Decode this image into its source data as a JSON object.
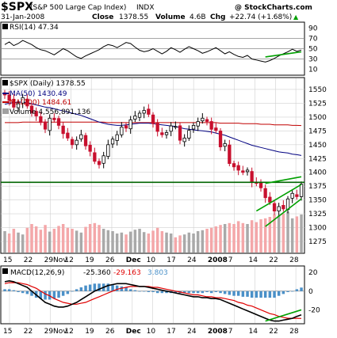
{
  "header": {
    "symbol": "$SPX",
    "name": "(S&P 500 Large Cap Index)",
    "exchange": "INDX",
    "watermark": "@ StockCharts.com",
    "date": "31-Jan-2008",
    "close_label": "Close",
    "close_value": "1378.55",
    "volume_label": "Volume",
    "volume_value": "4.6B",
    "chg_label": "Chg",
    "chg_value": "+22.74 (+1.68%)",
    "chg_arrow": "▲"
  },
  "chart_data": [
    {
      "type": "line",
      "panel": "rsi",
      "label": "RSI(14) 47.34",
      "ylim": [
        0,
        100
      ],
      "yticks": [
        10,
        30,
        50,
        70,
        90
      ],
      "reference_lines": [
        30,
        50,
        70
      ],
      "values": [
        58,
        63,
        56,
        60,
        66,
        62,
        58,
        52,
        48,
        46,
        42,
        38,
        44,
        50,
        46,
        40,
        34,
        31,
        36,
        40,
        44,
        48,
        54,
        58,
        56,
        52,
        57,
        62,
        60,
        53,
        47,
        44,
        46,
        50,
        45,
        40,
        45,
        52,
        48,
        43,
        49,
        54,
        50,
        46,
        41,
        44,
        48,
        52,
        46,
        40,
        44,
        39,
        35,
        33,
        37,
        30,
        28,
        26,
        24,
        27,
        31,
        36,
        40,
        44,
        49,
        45,
        47.34
      ],
      "trendline": [
        [
          58,
          34
        ],
        [
          66,
          44
        ]
      ],
      "trendline_color": "#00a000"
    },
    {
      "type": "candlestick",
      "panel": "price",
      "label": "$SPX (Daily) 1378.55",
      "legend": [
        {
          "name": "MA(50) 1430.49",
          "color": "#000080"
        },
        {
          "name": "MA(200) 1484.61",
          "color": "#c00000"
        },
        {
          "name": "Volume 4,556,891,136",
          "color": "#a0a0a0"
        }
      ],
      "ylim": [
        1255,
        1570
      ],
      "yticks": [
        1275,
        1300,
        1325,
        1350,
        1375,
        1400,
        1425,
        1450,
        1475,
        1500,
        1525,
        1550
      ],
      "x_labels": [
        "15",
        "22",
        "29Nov",
        "12",
        "19",
        "26",
        "Dec",
        "10",
        "17",
        "24",
        "2008",
        "7",
        "14",
        "22",
        "28"
      ],
      "close": [
        1540,
        1530,
        1518,
        1524,
        1535,
        1520,
        1508,
        1502,
        1490,
        1478,
        1498,
        1495,
        1485,
        1470,
        1462,
        1450,
        1458,
        1468,
        1448,
        1438,
        1420,
        1414,
        1430,
        1450,
        1460,
        1468,
        1482,
        1480,
        1495,
        1502,
        1507,
        1512,
        1505,
        1488,
        1474,
        1468,
        1472,
        1484,
        1483,
        1458,
        1462,
        1476,
        1485,
        1492,
        1498,
        1492,
        1478,
        1476,
        1446,
        1452,
        1416,
        1410,
        1404,
        1400,
        1404,
        1382,
        1380,
        1372,
        1354,
        1346,
        1330,
        1338,
        1334,
        1352,
        1362,
        1356,
        1378.55
      ],
      "ma50": [
        1523,
        1525,
        1526,
        1527,
        1527,
        1526,
        1524,
        1522,
        1520,
        1518,
        1517,
        1515,
        1513,
        1511,
        1509,
        1507,
        1505,
        1503,
        1500,
        1497,
        1494,
        1491,
        1489,
        1487,
        1486,
        1485,
        1485,
        1486,
        1487,
        1488,
        1489,
        1489,
        1489,
        1488,
        1487,
        1486,
        1485,
        1484,
        1483,
        1481,
        1479,
        1478,
        1477,
        1476,
        1475,
        1474,
        1473,
        1471,
        1469,
        1467,
        1464,
        1461,
        1458,
        1455,
        1452,
        1449,
        1447,
        1445,
        1443,
        1441,
        1439,
        1437,
        1436,
        1435,
        1433,
        1432,
        1430.49
      ],
      "ma200": [
        1490,
        1490,
        1490,
        1490,
        1491,
        1491,
        1491,
        1491,
        1491,
        1491,
        1491,
        1491,
        1491,
        1491,
        1491,
        1491,
        1491,
        1491,
        1491,
        1491,
        1491,
        1491,
        1491,
        1490,
        1490,
        1490,
        1490,
        1490,
        1490,
        1490,
        1490,
        1490,
        1490,
        1490,
        1490,
        1490,
        1490,
        1490,
        1490,
        1490,
        1490,
        1490,
        1490,
        1490,
        1490,
        1490,
        1490,
        1490,
        1489,
        1489,
        1489,
        1489,
        1489,
        1488,
        1488,
        1488,
        1488,
        1487,
        1487,
        1487,
        1486,
        1486,
        1486,
        1486,
        1485,
        1485,
        1484.61
      ],
      "volume_ratio": [
        0.45,
        0.4,
        0.5,
        0.42,
        0.38,
        0.52,
        0.6,
        0.55,
        0.48,
        0.58,
        0.44,
        0.5,
        0.56,
        0.6,
        0.52,
        0.5,
        0.46,
        0.42,
        0.54,
        0.6,
        0.62,
        0.58,
        0.5,
        0.47,
        0.45,
        0.4,
        0.42,
        0.38,
        0.44,
        0.48,
        0.5,
        0.43,
        0.4,
        0.46,
        0.52,
        0.45,
        0.42,
        0.4,
        0.32,
        0.36,
        0.38,
        0.42,
        0.4,
        0.45,
        0.47,
        0.5,
        0.52,
        0.55,
        0.58,
        0.6,
        0.62,
        0.6,
        0.66,
        0.62,
        0.6,
        0.68,
        0.64,
        0.7,
        0.72,
        0.75,
        0.8,
        0.78,
        0.82,
        0.86,
        0.72,
        0.76,
        0.8
      ],
      "horizontal_line": 1382,
      "horizontal_line_color": "#006400",
      "trend_channels": [
        [
          [
            56,
            1330
          ],
          [
            66,
            1378
          ]
        ],
        [
          [
            58,
            1302
          ],
          [
            66,
            1352
          ]
        ],
        [
          [
            58,
            1380
          ],
          [
            66,
            1392
          ]
        ]
      ],
      "trend_color": "#00a000"
    },
    {
      "type": "line",
      "panel": "macd",
      "label_name": "MACD(12,26,9)",
      "label_macd": "-25.360",
      "label_signal": "-29.163",
      "label_hist": "3.803",
      "ylim": [
        -34,
        26
      ],
      "yticks": [
        -20,
        0,
        20
      ],
      "x_labels": [
        "15",
        "22",
        "29Nov",
        "12",
        "19",
        "26",
        "Dec",
        "10",
        "17",
        "24",
        "2008",
        "7",
        "14",
        "22",
        "28"
      ],
      "macd": [
        10,
        11,
        10,
        8,
        6,
        4,
        0,
        -4,
        -8,
        -12,
        -14,
        -16,
        -17,
        -17,
        -16,
        -14,
        -12,
        -9,
        -6,
        -3,
        0,
        2,
        4,
        6,
        7,
        8,
        8,
        8,
        7,
        6,
        5,
        5,
        4,
        3,
        2,
        1,
        0,
        -1,
        -2,
        -3,
        -4,
        -5,
        -6,
        -6,
        -7,
        -7,
        -8,
        -8,
        -9,
        -11,
        -13,
        -15,
        -17,
        -19,
        -21,
        -23,
        -25,
        -27,
        -29,
        -31,
        -32,
        -32,
        -31,
        -30,
        -29,
        -27,
        -25.36
      ],
      "signal": [
        8,
        9,
        9,
        9,
        8,
        7,
        5,
        3,
        0,
        -3,
        -5,
        -8,
        -10,
        -12,
        -13,
        -14,
        -14,
        -13,
        -12,
        -10,
        -8,
        -6,
        -4,
        -2,
        0,
        2,
        3,
        4,
        5,
        5,
        5,
        5,
        5,
        4,
        4,
        3,
        2,
        1,
        0,
        -1,
        -2,
        -3,
        -4,
        -4,
        -5,
        -6,
        -6,
        -7,
        -7,
        -8,
        -9,
        -10,
        -12,
        -13,
        -15,
        -16,
        -18,
        -20,
        -22,
        -24,
        -25,
        -27,
        -28,
        -29,
        -29,
        -29,
        -29.163
      ],
      "histogram": [
        2,
        2,
        1,
        -1,
        -2,
        -3,
        -5,
        -7,
        -8,
        -9,
        -9,
        -8,
        -7,
        -5,
        -3,
        0,
        2,
        4,
        6,
        7,
        8,
        8,
        8,
        8,
        7,
        6,
        5,
        4,
        2,
        1,
        0,
        0,
        -1,
        -1,
        -2,
        -2,
        -2,
        -2,
        -2,
        -2,
        -2,
        -2,
        -2,
        -2,
        -2,
        -1,
        -2,
        -1,
        -2,
        -3,
        -4,
        -5,
        -5,
        -6,
        -6,
        -7,
        -7,
        -7,
        -7,
        -7,
        -7,
        -5,
        -3,
        -1,
        0,
        2,
        3.803
      ],
      "trendline": [
        [
          58,
          -32
        ],
        [
          66,
          -20
        ]
      ],
      "trendline_color": "#00a000"
    }
  ],
  "colors": {
    "up_candle": "#000000",
    "down_candle": "#c8102e",
    "volume_up": "#a9a9a9",
    "volume_down": "#f4a7a9",
    "macd_line": "#000000",
    "signal_line": "#e00000",
    "histogram": "#4a90c8",
    "grid": "#d0d0d0"
  }
}
